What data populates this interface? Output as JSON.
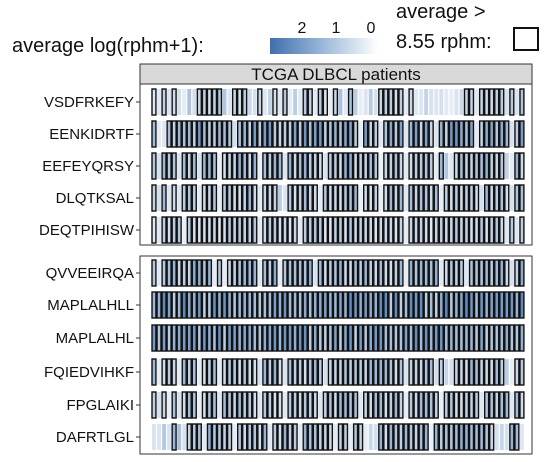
{
  "chart_data": {
    "type": "heatmap",
    "colors": {
      "high": "#4a7ab4",
      "low": "#ffffff",
      "outline": "#111111",
      "strip": "#d9d9d9"
    },
    "legend": {
      "color_label": "average  log(rphm+1):",
      "color_ticks": [
        "2",
        "1",
        "0"
      ],
      "outline_label_line1": "average >",
      "outline_label_line2": "8.55 rphm:"
    },
    "panel_title": "TCGA DLBCL patients",
    "groups": [
      {
        "rows": [
          {
            "label": "VSDFRKEFY",
            "pattern": "10101002011111201112010210102011011012012002011111010020000002110111110101",
            "strength": 0.32
          },
          {
            "label": "EENKIDRTF",
            "pattern": "10011111111111110111111111111111111111111011101111011111011111110111111011",
            "strength": 0.55
          },
          {
            "label": "EEFEYQRSY",
            "pattern": "10111011101110111111101111011111110111111111101111011111012011111111112011",
            "strength": 0.42
          },
          {
            "label": "DLQTKSAL",
            "pattern": "10101011101110111111101112011111101111111011101111011111101111111011111011",
            "strength": 0.4
          },
          {
            "label": "DEQTPIHISW",
            "pattern": "10111101111111111111101111111011111111111111111111011111111111111111110101",
            "strength": 0.3
          }
        ]
      },
      {
        "rows": [
          {
            "label": "QVVEEIRQA",
            "pattern": "10111111111101011111101110111111011111111111111111011111101111011111111011",
            "strength": 0.45
          },
          {
            "label": "MAPLALHLL",
            "pattern": "11111111111111111111111111111111111111111111111111111111111111111111111111",
            "strength": 0.62
          },
          {
            "label": "MAPLALHL",
            "pattern": "11111111111111111111111111111111111111111111111111111111111111111111111111",
            "strength": 0.6
          },
          {
            "label": "FQIEDVIHKF",
            "pattern": "10111011101110111111101111011111110111111111111111011111012011111111112011",
            "strength": 0.4
          },
          {
            "label": "FPGLAIKI",
            "pattern": "10101011101110111111101111011111101111111011111111011111101111111011111011",
            "strength": 0.38
          },
          {
            "label": "DAFRTLGL",
            "pattern": "00201201110111110111111011111011111101101102011111111110111111111111020110",
            "strength": 0.42
          }
        ]
      }
    ]
  }
}
